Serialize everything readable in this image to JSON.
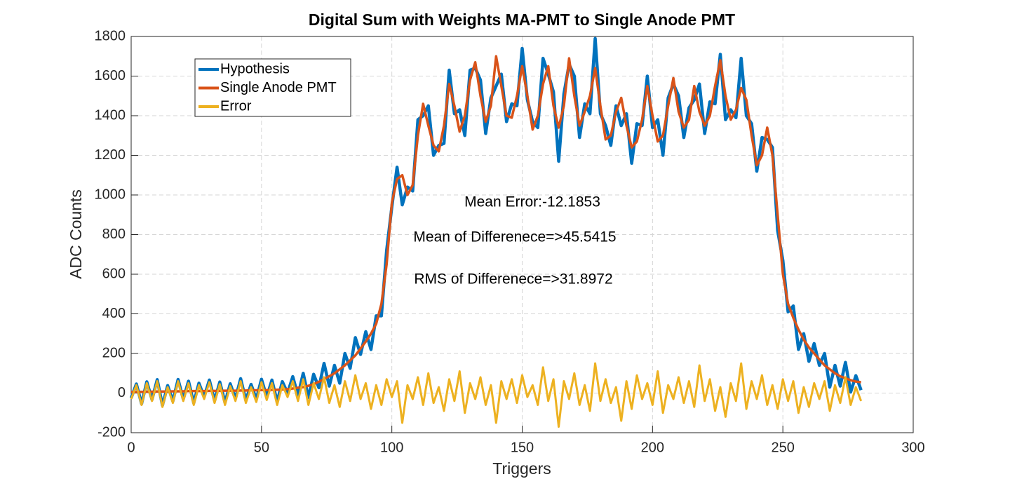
{
  "chart_data": {
    "type": "line",
    "title": "Digital Sum with Weights MA-PMT to Single Anode PMT",
    "x_label": "Triggers",
    "y_label": "ADC Counts",
    "annotations": [
      "Mean Error:-12.1853",
      "Mean of Differenece=>45.5415",
      "RMS of Differenece=>31.8972"
    ],
    "xlim": [
      0,
      300
    ],
    "xticks": [
      0,
      50,
      100,
      150,
      200,
      250,
      300
    ],
    "ylim": [
      -200,
      1800
    ],
    "yticks": [
      -200,
      0,
      200,
      400,
      600,
      800,
      1000,
      1200,
      1400,
      1600,
      1800
    ],
    "grid": true,
    "legend": "northwest",
    "x": [
      0,
      2,
      4,
      6,
      8,
      10,
      12,
      14,
      16,
      18,
      20,
      22,
      24,
      26,
      28,
      30,
      32,
      34,
      36,
      38,
      40,
      42,
      44,
      46,
      48,
      50,
      52,
      54,
      56,
      58,
      60,
      62,
      64,
      66,
      68,
      70,
      72,
      74,
      76,
      78,
      80,
      82,
      84,
      86,
      88,
      90,
      92,
      94,
      96,
      98,
      100,
      102,
      104,
      106,
      108,
      110,
      112,
      114,
      116,
      118,
      120,
      122,
      124,
      126,
      128,
      130,
      132,
      134,
      136,
      138,
      140,
      142,
      144,
      146,
      148,
      150,
      152,
      154,
      156,
      158,
      160,
      162,
      164,
      166,
      168,
      170,
      172,
      174,
      176,
      178,
      180,
      182,
      184,
      186,
      188,
      190,
      192,
      194,
      196,
      198,
      200,
      202,
      204,
      206,
      208,
      210,
      212,
      214,
      216,
      218,
      220,
      222,
      224,
      226,
      228,
      230,
      232,
      234,
      236,
      238,
      240,
      242,
      244,
      246,
      248,
      250,
      252,
      254,
      256,
      258,
      260,
      262,
      264,
      266,
      268,
      270,
      272,
      274,
      276,
      278,
      280
    ],
    "series": [
      {
        "name": "Hypothesis",
        "color": "#0072BD",
        "values": [
          -25,
          46,
          -54,
          57,
          -33,
          68,
          -62,
          38,
          -41,
          69,
          -31,
          60,
          -50,
          50,
          -20,
          66,
          -39,
          56,
          -48,
          47,
          -28,
          73,
          -37,
          44,
          -31,
          70,
          -20,
          66,
          -43,
          58,
          0,
          83,
          -13,
          100,
          -23,
          95,
          27,
          150,
          35,
          140,
          50,
          200,
          125,
          280,
          195,
          310,
          220,
          390,
          390,
          720,
          940,
          1140,
          950,
          1040,
          1020,
          1380,
          1400,
          1450,
          1200,
          1250,
          1260,
          1630,
          1410,
          1430,
          1300,
          1630,
          1640,
          1580,
          1310,
          1490,
          1550,
          1610,
          1370,
          1460,
          1450,
          1740,
          1480,
          1370,
          1340,
          1690,
          1610,
          1520,
          1170,
          1510,
          1660,
          1600,
          1290,
          1460,
          1410,
          1790,
          1410,
          1350,
          1250,
          1450,
          1350,
          1410,
          1160,
          1360,
          1350,
          1600,
          1340,
          1380,
          1200,
          1490,
          1560,
          1500,
          1290,
          1440,
          1480,
          1560,
          1310,
          1470,
          1460,
          1710,
          1380,
          1430,
          1390,
          1690,
          1400,
          1360,
          1120,
          1290,
          1280,
          1240,
          820,
          670,
          410,
          440,
          220,
          300,
          160,
          250,
          140,
          200,
          30,
          140,
          35,
          155,
          5,
          88,
          15
        ]
      },
      {
        "name": "Single Anode PMT",
        "color": "#D95319",
        "values": [
          5,
          6,
          6,
          7,
          7,
          8,
          8,
          8,
          9,
          9,
          9,
          10,
          10,
          10,
          10,
          11,
          11,
          11,
          12,
          12,
          12,
          13,
          13,
          14,
          14,
          15,
          15,
          16,
          17,
          18,
          20,
          23,
          27,
          30,
          37,
          45,
          57,
          70,
          85,
          100,
          120,
          140,
          165,
          190,
          225,
          260,
          300,
          350,
          450,
          650,
          960,
          1080,
          1100,
          1000,
          1050,
          1300,
          1460,
          1350,
          1250,
          1220,
          1350,
          1560,
          1450,
          1320,
          1400,
          1580,
          1670,
          1500,
          1370,
          1450,
          1700,
          1550,
          1400,
          1390,
          1500,
          1650,
          1500,
          1330,
          1400,
          1560,
          1650,
          1450,
          1340,
          1450,
          1690,
          1500,
          1350,
          1420,
          1500,
          1640,
          1450,
          1280,
          1300,
          1420,
          1490,
          1350,
          1240,
          1270,
          1380,
          1550,
          1400,
          1270,
          1300,
          1450,
          1590,
          1420,
          1340,
          1380,
          1550,
          1420,
          1350,
          1400,
          1550,
          1680,
          1500,
          1380,
          1430,
          1540,
          1480,
          1300,
          1150,
          1200,
          1340,
          1200,
          900,
          600,
          450,
          380,
          320,
          270,
          230,
          200,
          170,
          140,
          120,
          100,
          85,
          75,
          65,
          58,
          55
        ]
      },
      {
        "name": "Error",
        "color": "#EDB120",
        "values": [
          -30,
          40,
          -60,
          50,
          -40,
          60,
          -70,
          30,
          -50,
          60,
          -40,
          50,
          -60,
          40,
          -30,
          55,
          -50,
          45,
          -60,
          35,
          -40,
          60,
          -50,
          30,
          -45,
          55,
          -35,
          50,
          -60,
          40,
          -20,
          60,
          -40,
          70,
          -60,
          50,
          -30,
          80,
          -50,
          40,
          -70,
          60,
          -40,
          90,
          -30,
          50,
          -80,
          40,
          -60,
          70,
          -20,
          60,
          -150,
          40,
          -30,
          80,
          -60,
          100,
          -50,
          30,
          -90,
          70,
          -40,
          110,
          -100,
          50,
          -30,
          80,
          -60,
          40,
          -150,
          60,
          -30,
          70,
          -50,
          90,
          -20,
          40,
          -60,
          130,
          -40,
          70,
          -170,
          60,
          -30,
          100,
          -60,
          40,
          -90,
          150,
          -40,
          70,
          -50,
          30,
          -140,
          60,
          -80,
          90,
          -30,
          50,
          -60,
          110,
          -100,
          40,
          -30,
          80,
          -50,
          60,
          -70,
          140,
          -40,
          70,
          -90,
          30,
          -120,
          50,
          -40,
          150,
          -80,
          60,
          -30,
          90,
          -60,
          40,
          -80,
          70,
          -40,
          60,
          -100,
          30,
          -70,
          50,
          -30,
          60,
          -90,
          40,
          -50,
          80,
          -60,
          30,
          -40
        ]
      }
    ]
  }
}
